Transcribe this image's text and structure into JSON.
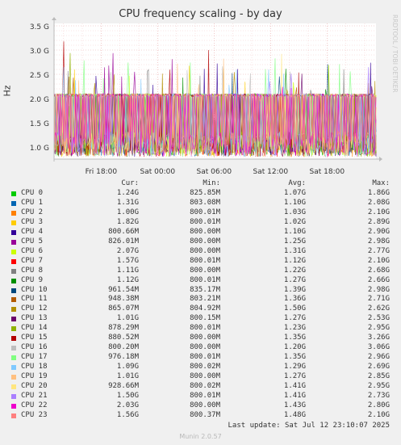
{
  "chart_data": {
    "type": "line",
    "title": "CPU frequency scaling - by day",
    "ylabel": "Hz",
    "ylim": [
      0.75,
      3.55
    ],
    "yticks": [
      "1.0 G",
      "1.5 G",
      "2.0 G",
      "2.5 G",
      "3.0 G",
      "3.5 G"
    ],
    "ytick_values": [
      1.0,
      1.5,
      2.0,
      2.5,
      3.0,
      3.5
    ],
    "xticks": [
      "Fri 18:00",
      "Sat 00:00",
      "Sat 06:00",
      "Sat 12:00",
      "Sat 18:00"
    ],
    "xtick_hours": [
      18,
      24,
      30,
      36,
      42
    ],
    "x_range_hours": [
      13,
      47.2
    ],
    "grid": true,
    "legend_placement": "bottom",
    "side_label": "RRDTOOL / TOBI OETIKER",
    "columns": [
      "Cur:",
      "Min:",
      "Avg:",
      "Max:"
    ],
    "series": [
      {
        "name": "CPU 0",
        "color": "#00cc00",
        "cur": "1.24G",
        "min": "825.85M",
        "avg": "1.07G",
        "max": "1.86G"
      },
      {
        "name": "CPU 1",
        "color": "#0066b3",
        "cur": "1.31G",
        "min": "803.08M",
        "avg": "1.10G",
        "max": "2.08G"
      },
      {
        "name": "CPU 2",
        "color": "#ff8000",
        "cur": "1.00G",
        "min": "800.01M",
        "avg": "1.03G",
        "max": "2.10G"
      },
      {
        "name": "CPU 3",
        "color": "#ffcc00",
        "cur": "1.82G",
        "min": "800.01M",
        "avg": "1.02G",
        "max": "2.89G"
      },
      {
        "name": "CPU 4",
        "color": "#330099",
        "cur": "800.66M",
        "min": "800.00M",
        "avg": "1.10G",
        "max": "2.90G"
      },
      {
        "name": "CPU 5",
        "color": "#990099",
        "cur": "826.01M",
        "min": "800.00M",
        "avg": "1.25G",
        "max": "2.98G"
      },
      {
        "name": "CPU 6",
        "color": "#ccff00",
        "cur": "2.07G",
        "min": "800.00M",
        "avg": "1.31G",
        "max": "2.77G"
      },
      {
        "name": "CPU 7",
        "color": "#ff0000",
        "cur": "1.57G",
        "min": "800.01M",
        "avg": "1.12G",
        "max": "2.10G"
      },
      {
        "name": "CPU 8",
        "color": "#808080",
        "cur": "1.11G",
        "min": "800.00M",
        "avg": "1.22G",
        "max": "2.68G"
      },
      {
        "name": "CPU 9",
        "color": "#008f00",
        "cur": "1.12G",
        "min": "800.01M",
        "avg": "1.27G",
        "max": "2.66G"
      },
      {
        "name": "CPU 10",
        "color": "#00487d",
        "cur": "961.54M",
        "min": "835.17M",
        "avg": "1.39G",
        "max": "2.98G"
      },
      {
        "name": "CPU 11",
        "color": "#b35a00",
        "cur": "948.38M",
        "min": "803.21M",
        "avg": "1.36G",
        "max": "2.71G"
      },
      {
        "name": "CPU 12",
        "color": "#b38f00",
        "cur": "865.07M",
        "min": "804.92M",
        "avg": "1.50G",
        "max": "2.62G"
      },
      {
        "name": "CPU 13",
        "color": "#6b006b",
        "cur": "1.01G",
        "min": "800.15M",
        "avg": "1.27G",
        "max": "2.53G"
      },
      {
        "name": "CPU 14",
        "color": "#8fb300",
        "cur": "878.29M",
        "min": "800.01M",
        "avg": "1.23G",
        "max": "2.95G"
      },
      {
        "name": "CPU 15",
        "color": "#b30000",
        "cur": "880.52M",
        "min": "800.00M",
        "avg": "1.35G",
        "max": "3.26G"
      },
      {
        "name": "CPU 16",
        "color": "#bebebe",
        "cur": "800.20M",
        "min": "800.00M",
        "avg": "1.20G",
        "max": "3.06G"
      },
      {
        "name": "CPU 17",
        "color": "#80ff80",
        "cur": "976.18M",
        "min": "800.01M",
        "avg": "1.35G",
        "max": "2.96G"
      },
      {
        "name": "CPU 18",
        "color": "#80c9ff",
        "cur": "1.09G",
        "min": "800.02M",
        "avg": "1.29G",
        "max": "2.69G"
      },
      {
        "name": "CPU 19",
        "color": "#ffc080",
        "cur": "1.01G",
        "min": "800.00M",
        "avg": "1.27G",
        "max": "2.85G"
      },
      {
        "name": "CPU 20",
        "color": "#ffe680",
        "cur": "928.66M",
        "min": "800.02M",
        "avg": "1.41G",
        "max": "2.95G"
      },
      {
        "name": "CPU 21",
        "color": "#aa80ff",
        "cur": "1.50G",
        "min": "800.01M",
        "avg": "1.41G",
        "max": "2.73G"
      },
      {
        "name": "CPU 22",
        "color": "#ee00cc",
        "cur": "2.03G",
        "min": "800.00M",
        "avg": "1.43G",
        "max": "2.80G"
      },
      {
        "name": "CPU 23",
        "color": "#ff8080",
        "cur": "1.56G",
        "min": "800.37M",
        "avg": "1.48G",
        "max": "2.10G"
      }
    ]
  },
  "footer": {
    "last_update": "Last update: Sat Jul 12 23:10:07 2025",
    "version": "Munin 2.0.57"
  }
}
